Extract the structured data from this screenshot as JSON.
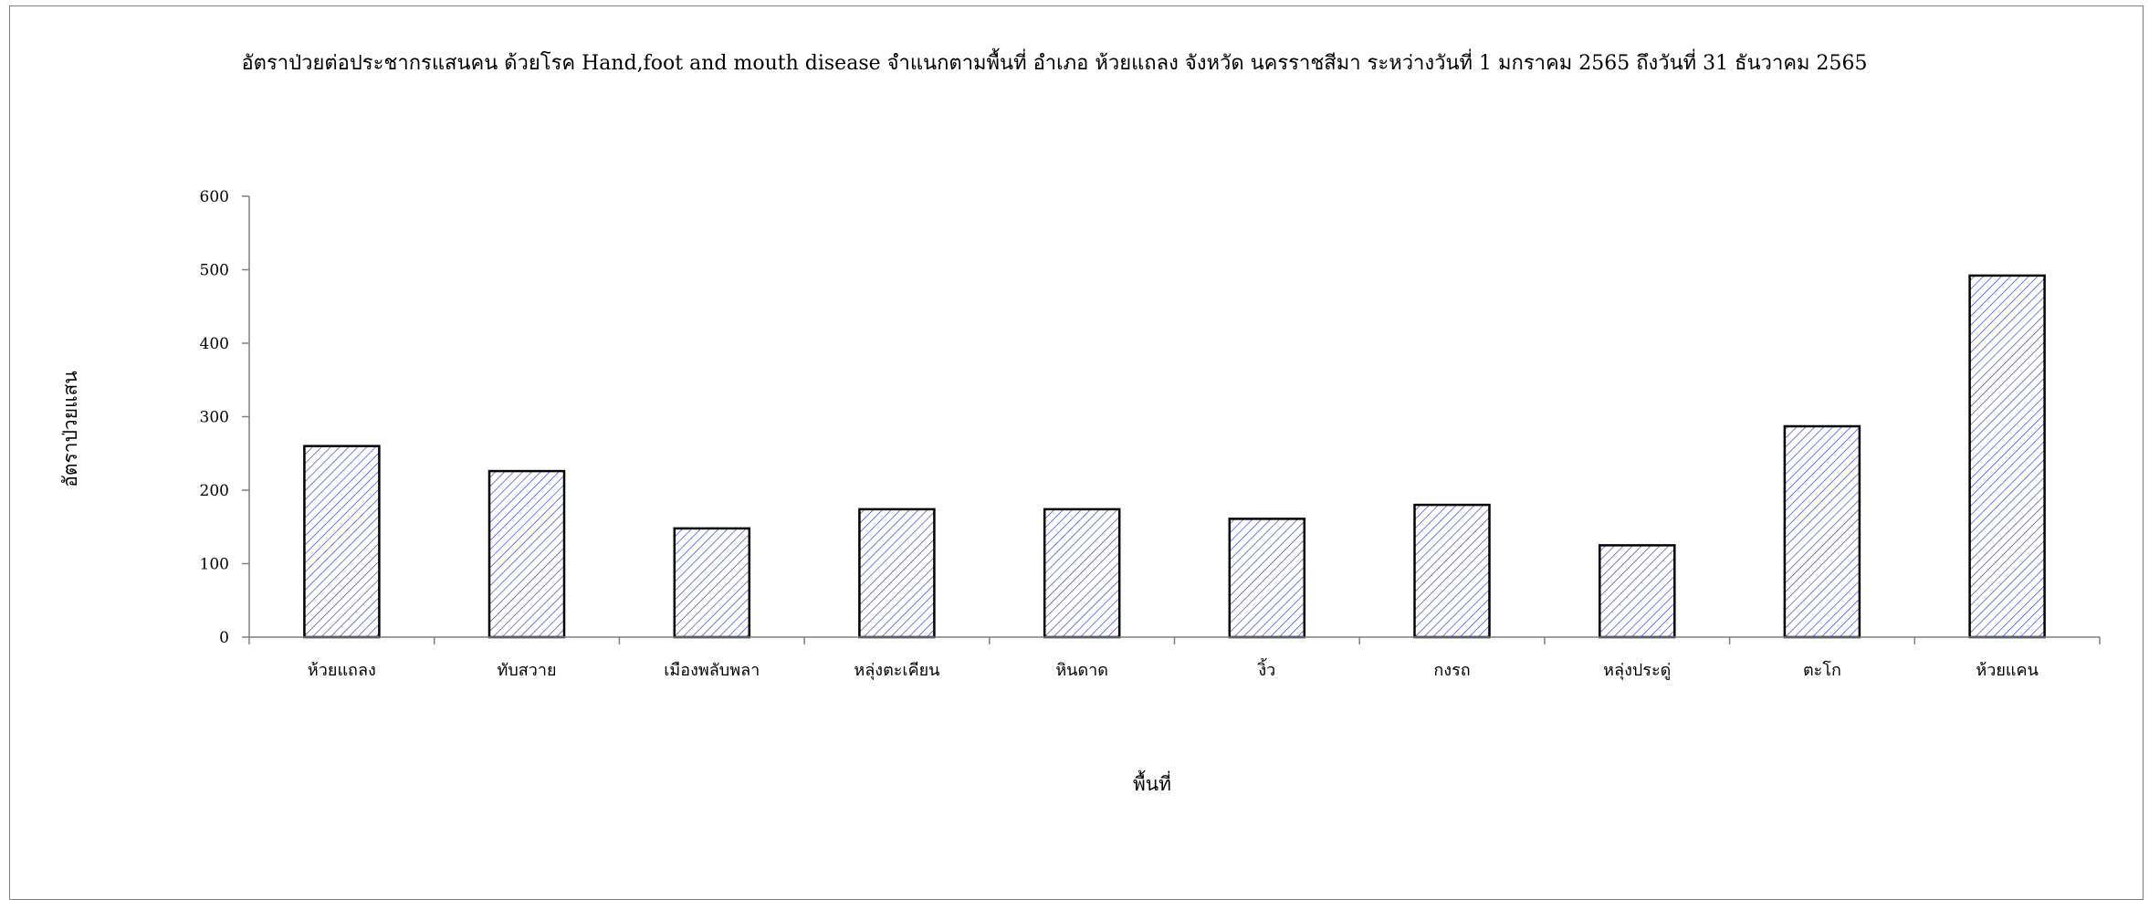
{
  "chart_data": {
    "type": "bar",
    "title": "อัตราป่วยต่อประชากรแสนคน ด้วยโรค Hand,foot and mouth disease  จำแนกตามพื้นที่    อำเภอ  ห้วยแถลง จังหวัด นครราชสีมา  ระหว่างวันที่  1 มกราคม 2565  ถึงวันที่  31 ธันวาคม 2565",
    "xlabel": "พื้นที่",
    "ylabel": "อัตราป่วยแสน",
    "categories": [
      "ห้วยแถลง",
      "ทับสวาย",
      "เมืองพลับพลา",
      "หลุ่งตะเคียน",
      "หินดาด",
      "งิ้ว",
      "กงรถ",
      "หลุ่งประดู่",
      "ตะโก",
      "ห้วยแคน"
    ],
    "values": [
      260,
      226,
      148,
      174,
      174,
      161,
      180,
      125,
      287,
      492
    ],
    "ylim": [
      0,
      600
    ],
    "yticks": [
      0,
      100,
      200,
      300,
      400,
      500,
      600
    ],
    "grid": false,
    "legend": "none",
    "bar_fill": "hatched",
    "colors": {
      "hatch": "#3333cc",
      "bar_outline": "#000000",
      "axis": "#808080"
    }
  }
}
